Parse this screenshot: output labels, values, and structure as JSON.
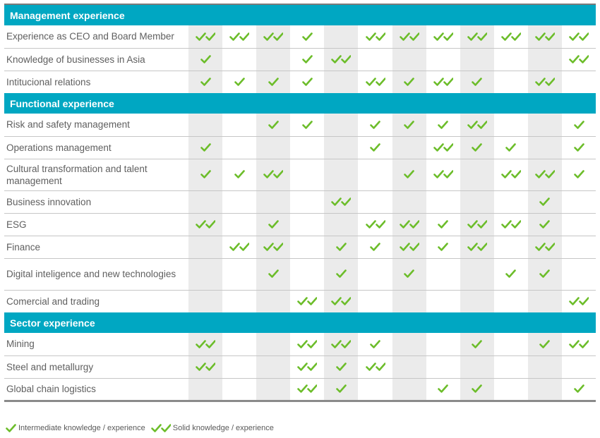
{
  "colors": {
    "header_bg": "#00a7c2",
    "check": "#6cbd2a",
    "shaded_column": "#ebebeb"
  },
  "icons": {
    "single": "check-icon",
    "double": "double-check-icon"
  },
  "sections": [
    {
      "title": "Management experience",
      "rows": [
        {
          "label": "Experience as CEO and Board Member",
          "marks": [
            2,
            2,
            2,
            1,
            0,
            2,
            2,
            2,
            2,
            2,
            2,
            2
          ]
        },
        {
          "label": "Knowledge of businesses in Asia",
          "marks": [
            1,
            0,
            0,
            1,
            2,
            0,
            0,
            0,
            0,
            0,
            0,
            2
          ]
        },
        {
          "label": "Intitucional relations",
          "marks": [
            1,
            1,
            1,
            1,
            0,
            2,
            1,
            2,
            1,
            0,
            2,
            0
          ]
        }
      ]
    },
    {
      "title": "Functional experience",
      "rows": [
        {
          "label": "Risk and safety management",
          "marks": [
            0,
            0,
            1,
            1,
            0,
            1,
            1,
            1,
            2,
            0,
            0,
            1
          ]
        },
        {
          "label": "Operations management",
          "marks": [
            1,
            0,
            0,
            0,
            0,
            1,
            0,
            2,
            1,
            1,
            0,
            1
          ]
        },
        {
          "label": "Cultural transformation and talent management",
          "marks": [
            1,
            1,
            2,
            0,
            0,
            0,
            1,
            2,
            0,
            2,
            2,
            1
          ]
        },
        {
          "label": "Business innovation",
          "marks": [
            0,
            0,
            0,
            0,
            2,
            0,
            0,
            0,
            0,
            0,
            1,
            0
          ]
        },
        {
          "label": "ESG",
          "marks": [
            2,
            0,
            1,
            0,
            0,
            2,
            2,
            1,
            2,
            2,
            1,
            0
          ]
        },
        {
          "label": "Finance",
          "marks": [
            0,
            2,
            2,
            0,
            1,
            1,
            2,
            1,
            2,
            0,
            2,
            0
          ]
        },
        {
          "label": "Digital inteligence and new technologies",
          "marks": [
            0,
            0,
            1,
            0,
            1,
            0,
            1,
            0,
            0,
            1,
            1,
            0
          ]
        },
        {
          "label": "Comercial and trading",
          "marks": [
            0,
            0,
            0,
            2,
            2,
            0,
            0,
            0,
            0,
            0,
            0,
            2
          ]
        }
      ]
    },
    {
      "title": "Sector experience",
      "rows": [
        {
          "label": "Mining",
          "marks": [
            2,
            0,
            0,
            2,
            2,
            1,
            0,
            0,
            1,
            0,
            1,
            2
          ]
        },
        {
          "label": "Steel and metallurgy",
          "marks": [
            2,
            0,
            0,
            2,
            1,
            2,
            0,
            0,
            0,
            0,
            0,
            0
          ]
        },
        {
          "label": "Global chain logistics",
          "marks": [
            0,
            0,
            0,
            2,
            1,
            0,
            0,
            1,
            1,
            0,
            0,
            1
          ]
        }
      ]
    }
  ],
  "legend": {
    "single_label": "Intermediate knowledge / experience",
    "double_label": "Solid knowledge / experience"
  }
}
